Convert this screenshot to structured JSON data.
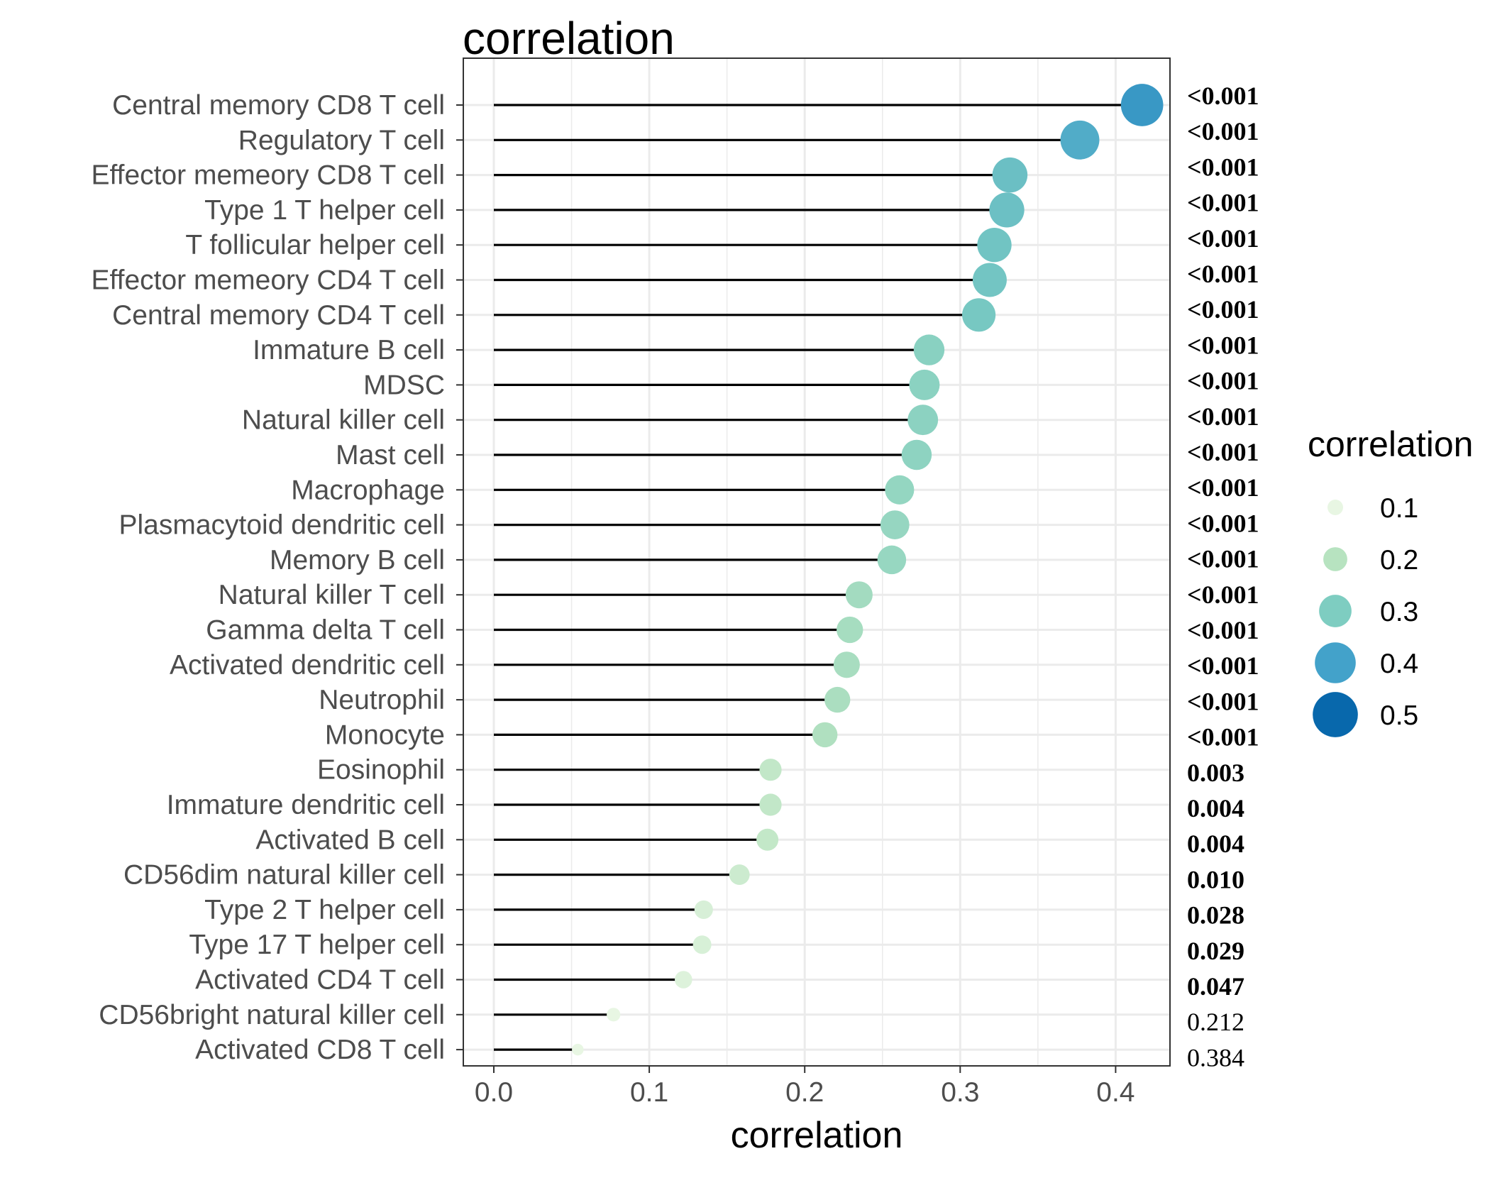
{
  "chart_data": {
    "type": "lollipop",
    "title": "correlation",
    "xlabel": "correlation",
    "ylabel": "",
    "xlim": [
      -0.02,
      0.437
    ],
    "xticks": [
      0.0,
      0.1,
      0.2,
      0.3,
      0.4
    ],
    "xtick_labels": [
      "0.0",
      "0.1",
      "0.2",
      "0.3",
      "0.4"
    ],
    "grid": true,
    "legend_position": "right",
    "legend": {
      "title": "correlation",
      "entries": [
        {
          "label": "0.1",
          "value": 0.1,
          "color": "#e8f6e3"
        },
        {
          "label": "0.2",
          "value": 0.2,
          "color": "#b7e3c0"
        },
        {
          "label": "0.3",
          "value": 0.3,
          "color": "#7ecdc1"
        },
        {
          "label": "0.4",
          "value": 0.4,
          "color": "#43a2ca"
        },
        {
          "label": "0.5",
          "value": 0.5,
          "color": "#0868ac"
        }
      ]
    },
    "points": [
      {
        "category": "Central memory CD8 T cell",
        "value": 0.417,
        "pvalue": "<0.001",
        "significant": true
      },
      {
        "category": "Regulatory T cell",
        "value": 0.377,
        "pvalue": "<0.001",
        "significant": true
      },
      {
        "category": "Effector memeory CD8 T cell",
        "value": 0.332,
        "pvalue": "<0.001",
        "significant": true
      },
      {
        "category": "Type 1 T helper cell",
        "value": 0.33,
        "pvalue": "<0.001",
        "significant": true
      },
      {
        "category": "T follicular helper cell",
        "value": 0.322,
        "pvalue": "<0.001",
        "significant": true
      },
      {
        "category": "Effector memeory CD4 T cell",
        "value": 0.319,
        "pvalue": "<0.001",
        "significant": true
      },
      {
        "category": "Central memory CD4 T cell",
        "value": 0.312,
        "pvalue": "<0.001",
        "significant": true
      },
      {
        "category": "Immature  B cell",
        "value": 0.28,
        "pvalue": "<0.001",
        "significant": true
      },
      {
        "category": "MDSC",
        "value": 0.277,
        "pvalue": "<0.001",
        "significant": true
      },
      {
        "category": "Natural killer cell",
        "value": 0.276,
        "pvalue": "<0.001",
        "significant": true
      },
      {
        "category": "Mast cell",
        "value": 0.272,
        "pvalue": "<0.001",
        "significant": true
      },
      {
        "category": "Macrophage",
        "value": 0.261,
        "pvalue": "<0.001",
        "significant": true
      },
      {
        "category": "Plasmacytoid dendritic cell",
        "value": 0.258,
        "pvalue": "<0.001",
        "significant": true
      },
      {
        "category": "Memory B cell",
        "value": 0.256,
        "pvalue": "<0.001",
        "significant": true
      },
      {
        "category": "Natural killer T cell",
        "value": 0.235,
        "pvalue": "<0.001",
        "significant": true
      },
      {
        "category": "Gamma delta T cell",
        "value": 0.229,
        "pvalue": "<0.001",
        "significant": true
      },
      {
        "category": "Activated dendritic cell",
        "value": 0.227,
        "pvalue": "<0.001",
        "significant": true
      },
      {
        "category": "Neutrophil",
        "value": 0.221,
        "pvalue": "<0.001",
        "significant": true
      },
      {
        "category": "Monocyte",
        "value": 0.213,
        "pvalue": "<0.001",
        "significant": true
      },
      {
        "category": "Eosinophil",
        "value": 0.178,
        "pvalue": "0.003",
        "significant": true
      },
      {
        "category": "Immature dendritic cell",
        "value": 0.178,
        "pvalue": "0.004",
        "significant": true
      },
      {
        "category": "Activated B cell",
        "value": 0.176,
        "pvalue": "0.004",
        "significant": true
      },
      {
        "category": "CD56dim natural killer cell",
        "value": 0.158,
        "pvalue": "0.010",
        "significant": true
      },
      {
        "category": "Type 2 T helper cell",
        "value": 0.135,
        "pvalue": "0.028",
        "significant": true
      },
      {
        "category": "Type 17 T helper cell",
        "value": 0.134,
        "pvalue": "0.029",
        "significant": true
      },
      {
        "category": "Activated CD4 T cell",
        "value": 0.122,
        "pvalue": "0.047",
        "significant": true
      },
      {
        "category": "CD56bright natural killer cell",
        "value": 0.077,
        "pvalue": "0.212",
        "significant": false
      },
      {
        "category": "Activated CD8 T cell",
        "value": 0.054,
        "pvalue": "0.384",
        "significant": false
      }
    ]
  }
}
